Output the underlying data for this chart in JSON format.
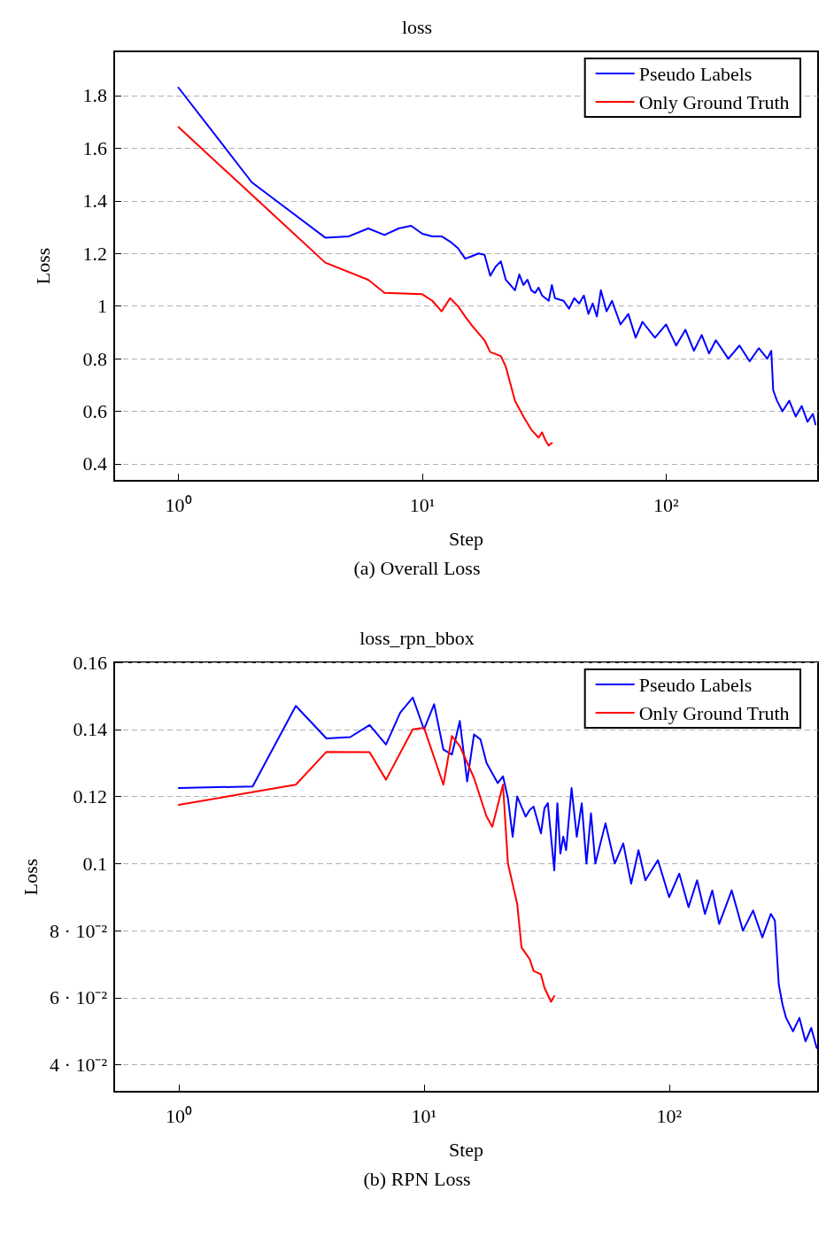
{
  "chart_data": [
    {
      "type": "line",
      "title": "loss",
      "xlabel": "Step",
      "ylabel": "Loss",
      "annotations": [
        "(a) Overall Loss"
      ],
      "log": "x",
      "grid": "y",
      "legend": "top right",
      "marker": "none",
      "line_style": "solid",
      "xlim": [
        0.545,
        420
      ],
      "xticks": [
        {
          "value": 1,
          "label": "10⁰"
        },
        {
          "value": 10,
          "label": "10¹"
        },
        {
          "value": 100,
          "label": "10²"
        }
      ],
      "ylim": [
        0.336,
        1.968
      ],
      "yticks": [
        0.4,
        0.6,
        0.8,
        1,
        1.2,
        1.4,
        1.6,
        1.8
      ],
      "series": [
        {
          "name": "Pseudo Labels",
          "color": "#0000ff",
          "x": [
            1,
            2,
            4,
            5,
            6,
            7,
            8,
            9,
            10,
            11,
            12,
            13,
            14,
            15,
            16,
            17,
            18,
            19,
            20,
            21,
            22,
            24,
            25,
            26,
            27,
            28,
            29,
            30,
            31,
            33,
            34,
            35,
            38,
            40,
            42,
            44,
            46,
            48,
            50,
            52,
            54,
            57,
            60,
            65,
            70,
            75,
            80,
            90,
            100,
            110,
            120,
            130,
            140,
            150,
            160,
            180,
            200,
            220,
            240,
            260,
            270,
            275,
            285,
            300,
            320,
            340,
            360,
            380,
            400,
            410
          ],
          "values": [
            1.83,
            1.47,
            1.26,
            1.265,
            1.295,
            1.27,
            1.295,
            1.305,
            1.275,
            1.265,
            1.265,
            1.245,
            1.22,
            1.18,
            1.19,
            1.2,
            1.195,
            1.115,
            1.15,
            1.17,
            1.1,
            1.06,
            1.12,
            1.08,
            1.1,
            1.06,
            1.05,
            1.07,
            1.04,
            1.02,
            1.08,
            1.03,
            1.02,
            0.99,
            1.03,
            1.01,
            1.04,
            0.97,
            1.01,
            0.96,
            1.06,
            0.98,
            1.02,
            0.93,
            0.97,
            0.88,
            0.94,
            0.88,
            0.93,
            0.85,
            0.91,
            0.83,
            0.89,
            0.82,
            0.87,
            0.8,
            0.85,
            0.79,
            0.84,
            0.8,
            0.83,
            0.68,
            0.64,
            0.6,
            0.64,
            0.58,
            0.62,
            0.56,
            0.59,
            0.55
          ]
        },
        {
          "name": "Only Ground Truth",
          "color": "#ff0000",
          "x": [
            1,
            4,
            6,
            7,
            10,
            11,
            12,
            13,
            14,
            15,
            16,
            18,
            19,
            21,
            22,
            24,
            26,
            28,
            30,
            31,
            32,
            33,
            34
          ],
          "values": [
            1.68,
            1.165,
            1.1,
            1.05,
            1.045,
            1.02,
            0.98,
            1.03,
            1.0,
            0.96,
            0.925,
            0.87,
            0.825,
            0.81,
            0.77,
            0.64,
            0.58,
            0.53,
            0.5,
            0.52,
            0.49,
            0.47,
            0.48
          ]
        }
      ]
    },
    {
      "type": "line",
      "title": "loss_rpn_bbox",
      "xlabel": "Step",
      "ylabel": "Loss",
      "annotations": [
        "(b) RPN Loss"
      ],
      "log": "x",
      "grid": "y",
      "legend": "top right",
      "marker": "none",
      "line_style": "solid",
      "xlim": [
        0.545,
        405
      ],
      "xticks": [
        {
          "value": 1,
          "label": "10⁰"
        },
        {
          "value": 10,
          "label": "10¹"
        },
        {
          "value": 100,
          "label": "10²"
        }
      ],
      "ylim": [
        0.032,
        0.16
      ],
      "yticks": [
        {
          "value": 0.04,
          "label": "4 · 10⁻²"
        },
        {
          "value": 0.06,
          "label": "6 · 10⁻²"
        },
        {
          "value": 0.08,
          "label": "8 · 10⁻²"
        },
        0.1,
        0.12,
        0.14,
        0.16
      ],
      "series": [
        {
          "name": "Pseudo Labels",
          "color": "#0000ff",
          "x": [
            1,
            2,
            3,
            4,
            5,
            6,
            7,
            8,
            9,
            10,
            11,
            12,
            13,
            14,
            15,
            16,
            17,
            18,
            20,
            21,
            22,
            23,
            24,
            26,
            27,
            28,
            30,
            31,
            32,
            34,
            35,
            36,
            37,
            38,
            40,
            42,
            44,
            46,
            48,
            50,
            55,
            60,
            65,
            70,
            75,
            80,
            90,
            100,
            110,
            120,
            130,
            140,
            150,
            160,
            180,
            200,
            220,
            240,
            260,
            270,
            280,
            290,
            300,
            320,
            340,
            360,
            380,
            400
          ],
          "values": [
            0.1225,
            0.123,
            0.147,
            0.1373,
            0.1377,
            0.1413,
            0.1355,
            0.145,
            0.1495,
            0.14,
            0.1475,
            0.134,
            0.1325,
            0.1425,
            0.1245,
            0.1385,
            0.137,
            0.13,
            0.124,
            0.126,
            0.1195,
            0.108,
            0.12,
            0.114,
            0.116,
            0.117,
            0.109,
            0.1165,
            0.118,
            0.098,
            0.118,
            0.103,
            0.108,
            0.104,
            0.1225,
            0.108,
            0.118,
            0.1,
            0.115,
            0.1,
            0.112,
            0.1,
            0.106,
            0.094,
            0.104,
            0.095,
            0.101,
            0.09,
            0.097,
            0.087,
            0.095,
            0.085,
            0.092,
            0.082,
            0.092,
            0.08,
            0.086,
            0.078,
            0.085,
            0.083,
            0.064,
            0.058,
            0.054,
            0.05,
            0.054,
            0.047,
            0.051,
            0.045
          ]
        },
        {
          "name": "Only Ground Truth",
          "color": "#ff0000",
          "x": [
            1,
            3,
            4,
            6,
            7,
            9,
            10,
            12,
            13,
            14,
            16,
            18,
            19,
            21,
            22,
            24,
            25,
            27,
            28,
            30,
            31,
            33,
            34
          ],
          "values": [
            0.1175,
            0.1235,
            0.1333,
            0.1332,
            0.125,
            0.14,
            0.1405,
            0.1235,
            0.138,
            0.135,
            0.1255,
            0.114,
            0.111,
            0.1235,
            0.1,
            0.088,
            0.075,
            0.0715,
            0.068,
            0.067,
            0.063,
            0.0588,
            0.0605
          ]
        }
      ]
    }
  ]
}
